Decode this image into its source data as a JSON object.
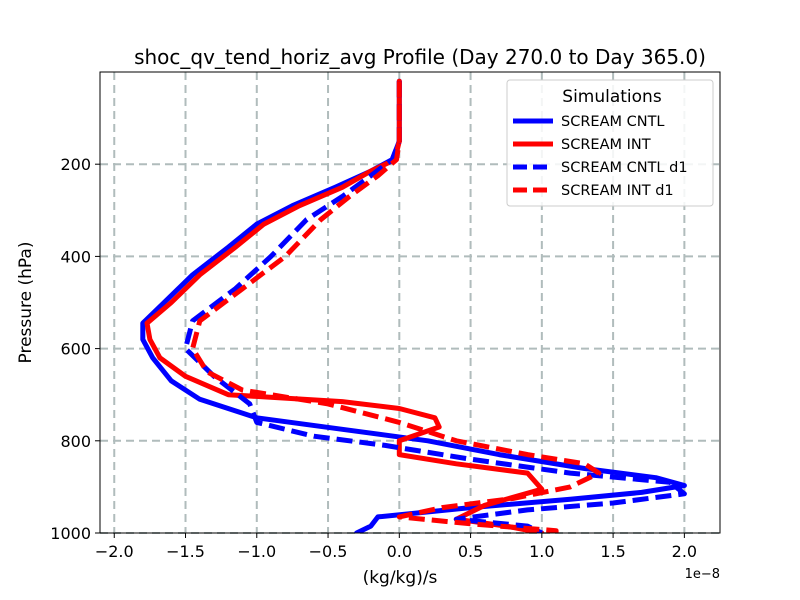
{
  "chart_data": {
    "type": "line",
    "title": "shoc_qv_tend_horiz_avg Profile (Day 270.0 to Day 365.0)",
    "xlabel": "(kg/kg)/s",
    "ylabel": "Pressure (hPa)",
    "x_scale_label": "1e−8",
    "xlim": [
      -2.1,
      2.25
    ],
    "ylim": [
      1000,
      0
    ],
    "x_ticks": [
      -2.0,
      -1.5,
      -1.0,
      -0.5,
      0.0,
      0.5,
      1.0,
      1.5,
      2.0
    ],
    "x_tick_labels": [
      "−2.0",
      "−1.5",
      "−1.0",
      "−0.5",
      "0.0",
      "0.5",
      "1.0",
      "1.5",
      "2.0"
    ],
    "y_ticks": [
      200,
      400,
      600,
      800,
      1000
    ],
    "y_tick_labels": [
      "200",
      "400",
      "600",
      "800",
      "1000"
    ],
    "grid": true,
    "legend": {
      "title": "Simulations",
      "position": "top-right"
    },
    "series": [
      {
        "name": "SCREAM CNTL",
        "color": "#0000ff",
        "style": "solid",
        "points": [
          [
            0.0,
            20
          ],
          [
            0.0,
            100
          ],
          [
            0.0,
            150
          ],
          [
            -0.05,
            190
          ],
          [
            -0.2,
            215
          ],
          [
            -0.45,
            250
          ],
          [
            -0.75,
            290
          ],
          [
            -1.0,
            330
          ],
          [
            -1.2,
            380
          ],
          [
            -1.45,
            440
          ],
          [
            -1.65,
            500
          ],
          [
            -1.8,
            545
          ],
          [
            -1.8,
            580
          ],
          [
            -1.73,
            620
          ],
          [
            -1.6,
            670
          ],
          [
            -1.4,
            710
          ],
          [
            -1.0,
            750
          ],
          [
            -0.4,
            775
          ],
          [
            0.2,
            800
          ],
          [
            0.7,
            830
          ],
          [
            1.3,
            860
          ],
          [
            1.8,
            880
          ],
          [
            2.0,
            897
          ],
          [
            1.7,
            912
          ],
          [
            1.2,
            927
          ],
          [
            0.5,
            945
          ],
          [
            -0.15,
            965
          ],
          [
            -0.2,
            985
          ],
          [
            -0.3,
            1000
          ]
        ]
      },
      {
        "name": "SCREAM INT",
        "color": "#ff0000",
        "style": "solid",
        "points": [
          [
            0.0,
            20
          ],
          [
            0.0,
            100
          ],
          [
            0.0,
            150
          ],
          [
            -0.03,
            190
          ],
          [
            -0.2,
            215
          ],
          [
            -0.4,
            250
          ],
          [
            -0.7,
            290
          ],
          [
            -0.95,
            330
          ],
          [
            -1.15,
            380
          ],
          [
            -1.4,
            440
          ],
          [
            -1.6,
            500
          ],
          [
            -1.77,
            545
          ],
          [
            -1.75,
            580
          ],
          [
            -1.68,
            620
          ],
          [
            -1.5,
            660
          ],
          [
            -1.2,
            700
          ],
          [
            -0.4,
            715
          ],
          [
            0.0,
            730
          ],
          [
            0.25,
            750
          ],
          [
            0.28,
            770
          ],
          [
            0.0,
            800
          ],
          [
            0.0,
            830
          ],
          [
            0.4,
            850
          ],
          [
            0.9,
            870
          ],
          [
            1.0,
            905
          ],
          [
            0.6,
            940
          ],
          [
            0.4,
            970
          ],
          [
            0.75,
            985
          ],
          [
            1.0,
            1000
          ]
        ]
      },
      {
        "name": "SCREAM CNTL d1",
        "color": "#0000ff",
        "style": "dashed",
        "points": [
          [
            0.0,
            20
          ],
          [
            0.0,
            100
          ],
          [
            0.0,
            150
          ],
          [
            -0.05,
            190
          ],
          [
            -0.2,
            225
          ],
          [
            -0.4,
            270
          ],
          [
            -0.65,
            320
          ],
          [
            -0.9,
            400
          ],
          [
            -1.15,
            470
          ],
          [
            -1.45,
            540
          ],
          [
            -1.5,
            600
          ],
          [
            -1.3,
            660
          ],
          [
            -1.05,
            720
          ],
          [
            -1.0,
            760
          ],
          [
            -0.6,
            790
          ],
          [
            -0.1,
            810
          ],
          [
            0.5,
            840
          ],
          [
            1.2,
            870
          ],
          [
            1.9,
            890
          ],
          [
            2.0,
            915
          ],
          [
            1.5,
            935
          ],
          [
            0.9,
            950
          ],
          [
            0.4,
            970
          ],
          [
            0.9,
            985
          ],
          [
            1.0,
            1000
          ]
        ]
      },
      {
        "name": "SCREAM INT d1",
        "color": "#ff0000",
        "style": "dashed",
        "points": [
          [
            0.0,
            20
          ],
          [
            0.0,
            100
          ],
          [
            0.0,
            150
          ],
          [
            -0.02,
            190
          ],
          [
            -0.15,
            225
          ],
          [
            -0.35,
            270
          ],
          [
            -0.55,
            320
          ],
          [
            -0.8,
            400
          ],
          [
            -1.1,
            470
          ],
          [
            -1.4,
            540
          ],
          [
            -1.45,
            600
          ],
          [
            -1.35,
            650
          ],
          [
            -1.1,
            690
          ],
          [
            -0.5,
            720
          ],
          [
            0.0,
            760
          ],
          [
            0.4,
            800
          ],
          [
            0.9,
            830
          ],
          [
            1.3,
            850
          ],
          [
            1.4,
            870
          ],
          [
            1.2,
            900
          ],
          [
            0.8,
            925
          ],
          [
            0.3,
            945
          ],
          [
            0.0,
            965
          ],
          [
            0.5,
            980
          ],
          [
            1.1,
            995
          ],
          [
            1.1,
            1000
          ]
        ]
      }
    ]
  }
}
